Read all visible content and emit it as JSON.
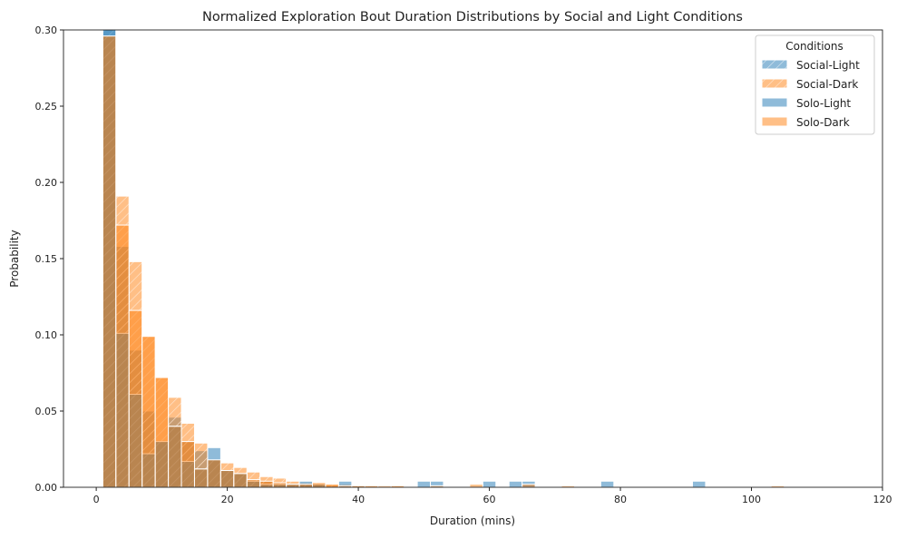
{
  "chart_data": {
    "type": "bar",
    "title": "Normalized Exploration Bout Duration Distributions by Social and Light Conditions",
    "xlabel": "Duration (mins)",
    "ylabel": "Probability",
    "xlim": [
      -5,
      120
    ],
    "ylim": [
      0,
      0.3
    ],
    "xticks": [
      0,
      20,
      40,
      60,
      80,
      100,
      120
    ],
    "yticks": [
      0.0,
      0.05,
      0.1,
      0.15,
      0.2,
      0.25,
      0.3
    ],
    "xtick_labels": [
      "0",
      "20",
      "40",
      "60",
      "80",
      "100",
      "120"
    ],
    "ytick_labels": [
      "0.00",
      "0.05",
      "0.10",
      "0.15",
      "0.20",
      "0.25",
      "0.30"
    ],
    "bin_start": 1,
    "bin_width": 2,
    "grid": false,
    "legend": {
      "title": "Conditions",
      "placement": "top-right"
    },
    "series": [
      {
        "name": "Social-Light",
        "color": "#1f77b4",
        "hatched": true,
        "values": [
          0.31,
          0.158,
          0.09,
          0.05,
          0.03,
          0.046,
          0.03,
          0.024,
          0.018,
          0.011,
          0.009,
          0.005,
          0.004,
          0.003,
          0.002,
          0.002,
          0.002,
          0.001,
          0.001,
          0.001,
          0,
          0,
          0,
          0,
          0,
          0,
          0,
          0,
          0,
          0,
          0,
          0,
          0,
          0,
          0,
          0,
          0,
          0,
          0,
          0,
          0,
          0,
          0,
          0,
          0,
          0,
          0,
          0,
          0,
          0,
          0,
          0
        ]
      },
      {
        "name": "Social-Dark",
        "color": "#ff7f0e",
        "hatched": true,
        "values": [
          0.296,
          0.191,
          0.148,
          0.099,
          0.072,
          0.059,
          0.042,
          0.029,
          0.018,
          0.016,
          0.013,
          0.01,
          0.007,
          0.006,
          0.004,
          0.003,
          0.003,
          0.002,
          0.002,
          0.001,
          0.001,
          0,
          0.001,
          0,
          0,
          0,
          0,
          0,
          0,
          0,
          0,
          0,
          0,
          0,
          0,
          0,
          0,
          0,
          0,
          0,
          0,
          0,
          0,
          0,
          0,
          0,
          0,
          0,
          0,
          0,
          0,
          0
        ]
      },
      {
        "name": "Solo-Light",
        "color": "#1f77b4",
        "hatched": false,
        "values": [
          0.32,
          0.101,
          0.061,
          0.022,
          0.03,
          0.04,
          0.017,
          0.012,
          0.026,
          0.011,
          0.009,
          0.004,
          0.002,
          0.002,
          0.002,
          0.004,
          0.002,
          0,
          0.004,
          0,
          0,
          0,
          0,
          0,
          0.004,
          0.004,
          0,
          0,
          0,
          0.004,
          0,
          0.004,
          0.004,
          0,
          0,
          0,
          0,
          0,
          0.004,
          0,
          0,
          0,
          0,
          0,
          0,
          0.004,
          0,
          0,
          0,
          0,
          0,
          0
        ]
      },
      {
        "name": "Solo-Dark",
        "color": "#ff7f0e",
        "hatched": false,
        "values": [
          0.296,
          0.172,
          0.116,
          0.099,
          0.072,
          0.04,
          0.03,
          0.012,
          0.018,
          0.011,
          0.009,
          0.005,
          0.004,
          0.003,
          0.002,
          0.002,
          0.003,
          0.002,
          0.001,
          0.001,
          0.001,
          0.001,
          0.001,
          0,
          0,
          0.001,
          0,
          0,
          0.002,
          0,
          0,
          0,
          0.002,
          0,
          0,
          0.001,
          0,
          0,
          0,
          0,
          0,
          0,
          0,
          0,
          0,
          0,
          0,
          0,
          0,
          0,
          0,
          0.001
        ]
      }
    ]
  }
}
